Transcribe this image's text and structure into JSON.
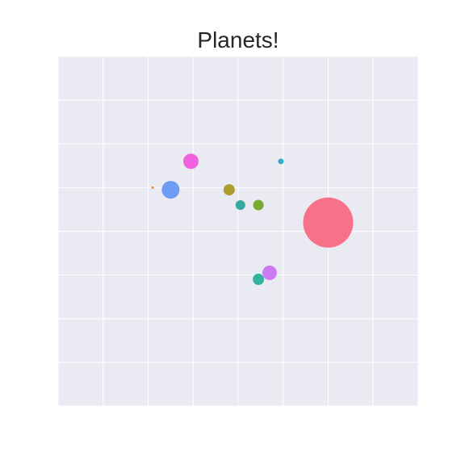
{
  "chart_data": {
    "type": "scatter",
    "title": "Planets!",
    "xlabel": "",
    "ylabel": "",
    "xlim": [
      0,
      8
    ],
    "ylim": [
      0,
      8
    ],
    "grid": true,
    "grid_divisions": 8,
    "background": "#eaeaf2",
    "grid_color": "#ffffff",
    "points": [
      {
        "x": 2.95,
        "y": 5.6,
        "size": 9.5,
        "color": "#f061dd"
      },
      {
        "x": 4.95,
        "y": 5.6,
        "size": 3.5,
        "color": "#36acc6"
      },
      {
        "x": 2.1,
        "y": 5.0,
        "size": 1.5,
        "color": "#dc8932"
      },
      {
        "x": 2.5,
        "y": 4.95,
        "size": 11,
        "color": "#6e9bf4"
      },
      {
        "x": 3.8,
        "y": 4.95,
        "size": 7,
        "color": "#ae9d31"
      },
      {
        "x": 4.05,
        "y": 4.6,
        "size": 6,
        "color": "#39a8a0"
      },
      {
        "x": 4.45,
        "y": 4.6,
        "size": 6.5,
        "color": "#77ab31"
      },
      {
        "x": 6.0,
        "y": 4.2,
        "size": 31,
        "color": "#f77189"
      },
      {
        "x": 4.7,
        "y": 3.05,
        "size": 9,
        "color": "#cc7af4"
      },
      {
        "x": 4.45,
        "y": 2.9,
        "size": 7,
        "color": "#33b29d"
      }
    ]
  }
}
